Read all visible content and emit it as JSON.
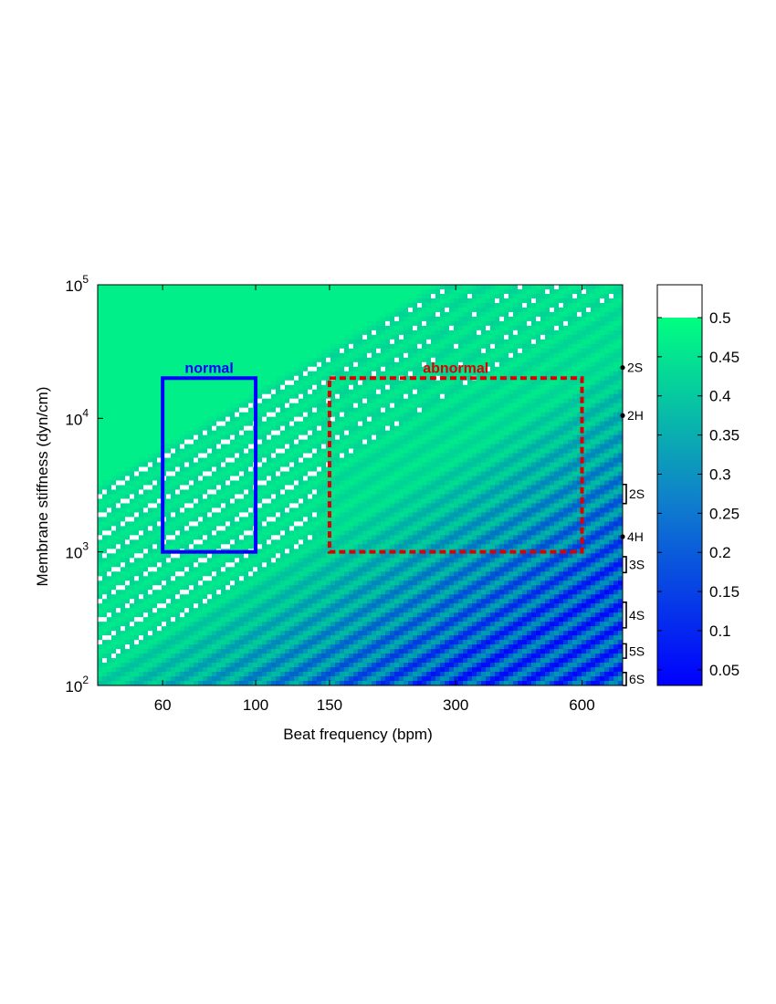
{
  "chart_data": {
    "type": "heatmap",
    "xlabel": "Beat frequency (bpm)",
    "ylabel": "Membrane stiffness (dyn/cm)",
    "x_scale": "log",
    "y_scale": "log",
    "xlim": [
      42,
      750
    ],
    "ylim": [
      100,
      100000
    ],
    "x_ticks": [
      60,
      100,
      150,
      300,
      600
    ],
    "x_tick_labels": [
      "60",
      "100",
      "150",
      "300",
      "600"
    ],
    "y_ticks": [
      {
        "base": "10",
        "exp": "2",
        "value": 100
      },
      {
        "base": "10",
        "exp": "3",
        "value": 1000
      },
      {
        "base": "10",
        "exp": "4",
        "value": 10000
      },
      {
        "base": "10",
        "exp": "5",
        "value": 100000
      }
    ],
    "colorbar": {
      "min": 0.03,
      "max": 0.5,
      "saturation_color": "#ffffff",
      "color_low": "#0000ff",
      "color_high": "#00ff7f",
      "tick_labels": [
        "0.05",
        "0.1",
        "0.15",
        "0.2",
        "0.25",
        "0.3",
        "0.35",
        "0.4",
        "0.45",
        "0.5"
      ]
    },
    "regions": [
      {
        "label": "normal",
        "x": [
          60,
          100
        ],
        "y": [
          1000,
          20000
        ],
        "color": "#0000ff",
        "style": "solid"
      },
      {
        "label": "abnormal",
        "x": [
          150,
          600
        ],
        "y": [
          1000,
          20000
        ],
        "color": "#dd0000",
        "style": "dashed"
      }
    ],
    "mode_markers": [
      {
        "label": "2S",
        "kind": "point",
        "y": 24000
      },
      {
        "label": "2H",
        "kind": "point",
        "y": 10500
      },
      {
        "label": "2S",
        "kind": "bracket",
        "y_low": 2300,
        "y_high": 3200
      },
      {
        "label": "4H",
        "kind": "point",
        "y": 1300
      },
      {
        "label": "3S",
        "kind": "bracket",
        "y_low": 700,
        "y_high": 920
      },
      {
        "label": "4S",
        "kind": "bracket",
        "y_low": 270,
        "y_high": 420
      },
      {
        "label": "5S",
        "kind": "bracket",
        "y_low": 160,
        "y_high": 205
      },
      {
        "label": "6S",
        "kind": "bracket",
        "y_low": 100,
        "y_high": 125
      }
    ]
  }
}
